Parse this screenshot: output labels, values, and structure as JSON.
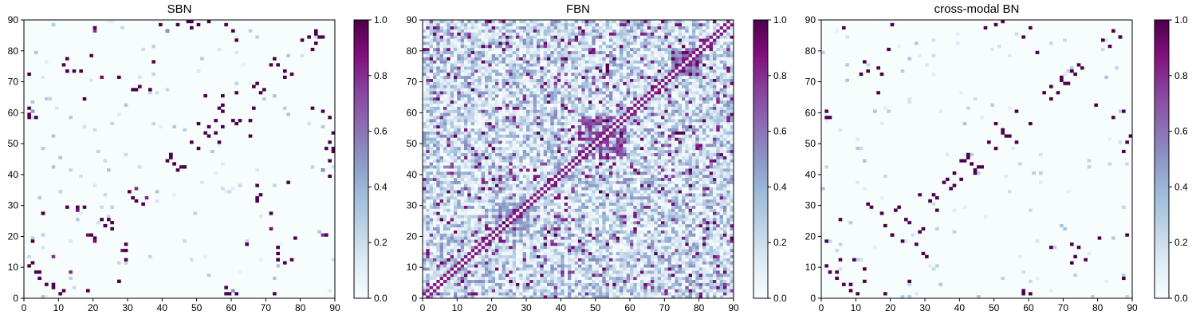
{
  "chart_data": [
    {
      "type": "heatmap",
      "title": "SBN",
      "xlim": [
        0,
        90
      ],
      "ylim": [
        0,
        90
      ],
      "x_ticks": [
        0,
        10,
        20,
        30,
        40,
        50,
        60,
        70,
        80,
        90
      ],
      "y_ticks": [
        0,
        10,
        20,
        30,
        40,
        50,
        60,
        70,
        80,
        90
      ],
      "matrix_size": 90,
      "colormap": "BuPu",
      "colorbar": {
        "range": [
          0.0,
          1.0
        ],
        "ticks": [
          "0.0",
          "0.2",
          "0.4",
          "0.6",
          "0.8",
          "1.0"
        ]
      },
      "values_note": "sparse symmetric matrix: mostly 0.0 with scattered entries near 1.0, concentrated near the diagonal and in the corners",
      "clusters": [
        {
          "x": 3,
          "y": 58,
          "v": 1.0
        },
        {
          "x": 2,
          "y": 60,
          "v": 0.5
        },
        {
          "x": 4,
          "y": 8,
          "v": 1.0
        },
        {
          "x": 6,
          "y": 4,
          "v": 1.0
        },
        {
          "x": 8,
          "y": 3,
          "v": 1.0
        },
        {
          "x": 5,
          "y": 27,
          "v": 1.0
        },
        {
          "x": 2,
          "y": 18,
          "v": 1.0
        },
        {
          "x": 10,
          "y": 1,
          "v": 1.0
        },
        {
          "x": 11,
          "y": 2,
          "v": 1.0
        },
        {
          "x": 13,
          "y": 8,
          "v": 0.8
        },
        {
          "x": 15,
          "y": 29,
          "v": 1.0
        },
        {
          "x": 17,
          "y": 29,
          "v": 1.0
        },
        {
          "x": 19,
          "y": 20,
          "v": 1.0
        },
        {
          "x": 20,
          "y": 18,
          "v": 0.9
        },
        {
          "x": 22,
          "y": 25,
          "v": 1.0
        },
        {
          "x": 24,
          "y": 25,
          "v": 1.0
        },
        {
          "x": 23,
          "y": 23,
          "v": 1.0
        },
        {
          "x": 27,
          "y": 5,
          "v": 1.0
        },
        {
          "x": 28,
          "y": 15,
          "v": 0.9
        },
        {
          "x": 29,
          "y": 12,
          "v": 1.0
        },
        {
          "x": 30,
          "y": 34,
          "v": 1.0
        },
        {
          "x": 31,
          "y": 32,
          "v": 1.0
        },
        {
          "x": 32,
          "y": 35,
          "v": 0.8
        },
        {
          "x": 20,
          "y": 87,
          "v": 1.0
        },
        {
          "x": 16,
          "y": 73,
          "v": 1.0
        },
        {
          "x": 14,
          "y": 73,
          "v": 1.0
        },
        {
          "x": 12,
          "y": 73,
          "v": 1.0
        },
        {
          "x": 17,
          "y": 64,
          "v": 1.0
        },
        {
          "x": 27,
          "y": 71,
          "v": 1.0
        },
        {
          "x": 22,
          "y": 71,
          "v": 0.9
        },
        {
          "x": 31,
          "y": 67,
          "v": 1.0
        },
        {
          "x": 32,
          "y": 67,
          "v": 1.0
        },
        {
          "x": 33,
          "y": 68,
          "v": 1.0
        },
        {
          "x": 36,
          "y": 67,
          "v": 1.0
        },
        {
          "x": 37,
          "y": 76,
          "v": 1.0
        },
        {
          "x": 41,
          "y": 86,
          "v": 1.0
        },
        {
          "x": 39,
          "y": 88,
          "v": 1.0
        },
        {
          "x": 44,
          "y": 88,
          "v": 1.0
        },
        {
          "x": 48,
          "y": 89,
          "v": 1.0
        },
        {
          "x": 41,
          "y": 44,
          "v": 1.0
        },
        {
          "x": 42,
          "y": 46,
          "v": 1.0
        },
        {
          "x": 43,
          "y": 43,
          "v": 1.0
        },
        {
          "x": 45,
          "y": 42,
          "v": 1.0
        },
        {
          "x": 46,
          "y": 42,
          "v": 1.0
        },
        {
          "x": 48,
          "y": 50,
          "v": 1.0
        },
        {
          "x": 50,
          "y": 56,
          "v": 1.0
        },
        {
          "x": 52,
          "y": 53,
          "v": 1.0
        },
        {
          "x": 53,
          "y": 55,
          "v": 1.0
        },
        {
          "x": 55,
          "y": 57,
          "v": 1.0
        },
        {
          "x": 56,
          "y": 61,
          "v": 1.0
        },
        {
          "x": 57,
          "y": 65,
          "v": 1.0
        },
        {
          "x": 58,
          "y": 1,
          "v": 1.0
        },
        {
          "x": 59,
          "y": 1,
          "v": 1.0
        },
        {
          "x": 61,
          "y": 1,
          "v": 1.0
        },
        {
          "x": 58,
          "y": 88,
          "v": 1.0
        },
        {
          "x": 60,
          "y": 86,
          "v": 1.0
        },
        {
          "x": 61,
          "y": 83,
          "v": 1.0
        },
        {
          "x": 60,
          "y": 57,
          "v": 1.0
        },
        {
          "x": 62,
          "y": 57,
          "v": 1.0
        },
        {
          "x": 65,
          "y": 52,
          "v": 1.0
        },
        {
          "x": 66,
          "y": 61,
          "v": 1.0
        },
        {
          "x": 68,
          "y": 66,
          "v": 1.0
        },
        {
          "x": 69,
          "y": 67,
          "v": 1.0
        },
        {
          "x": 71,
          "y": 75,
          "v": 1.0
        },
        {
          "x": 72,
          "y": 77,
          "v": 1.0
        },
        {
          "x": 75,
          "y": 73,
          "v": 1.0
        },
        {
          "x": 73,
          "y": 12,
          "v": 1.0
        },
        {
          "x": 75,
          "y": 11,
          "v": 1.0
        },
        {
          "x": 77,
          "y": 12,
          "v": 1.0
        },
        {
          "x": 72,
          "y": 1,
          "v": 1.0
        },
        {
          "x": 78,
          "y": 19,
          "v": 1.0
        },
        {
          "x": 80,
          "y": 83,
          "v": 1.0
        },
        {
          "x": 82,
          "y": 84,
          "v": 1.0
        },
        {
          "x": 84,
          "y": 85,
          "v": 1.0
        },
        {
          "x": 86,
          "y": 84,
          "v": 1.0
        },
        {
          "x": 88,
          "y": 50,
          "v": 1.0
        },
        {
          "x": 87,
          "y": 48,
          "v": 1.0
        },
        {
          "x": 89,
          "y": 53,
          "v": 1.0
        },
        {
          "x": 89,
          "y": 47,
          "v": 1.0
        },
        {
          "x": 86,
          "y": 20,
          "v": 0.8
        },
        {
          "x": 86,
          "y": 41,
          "v": 0.5
        }
      ]
    },
    {
      "type": "heatmap",
      "title": "FBN",
      "xlim": [
        0,
        90
      ],
      "ylim": [
        0,
        90
      ],
      "x_ticks": [
        0,
        10,
        20,
        30,
        40,
        50,
        60,
        70,
        80,
        90
      ],
      "y_ticks": [
        0,
        10,
        20,
        30,
        40,
        50,
        60,
        70,
        80,
        90
      ],
      "matrix_size": 90,
      "colormap": "BuPu",
      "colorbar": {
        "range": [
          0.0,
          1.0
        ],
        "ticks": [
          "0.0",
          "0.2",
          "0.4",
          "0.6",
          "0.8",
          "1.0"
        ]
      },
      "values_note": "dense symmetric matrix with values spread across 0.0–1.0, strongest along the diagonal and in a block near 45–58",
      "dense_blocks": [
        {
          "x0": 45,
          "x1": 58,
          "y0": 45,
          "y1": 58,
          "v": 0.85
        },
        {
          "x0": 72,
          "x1": 80,
          "y0": 72,
          "y1": 80,
          "v": 0.7
        },
        {
          "x0": 20,
          "x1": 30,
          "y0": 20,
          "y1": 30,
          "v": 0.6
        }
      ]
    },
    {
      "type": "heatmap",
      "title": "cross-modal BN",
      "xlim": [
        0,
        90
      ],
      "ylim": [
        0,
        90
      ],
      "x_ticks": [
        0,
        10,
        20,
        30,
        40,
        50,
        60,
        70,
        80,
        90
      ],
      "y_ticks": [
        0,
        10,
        20,
        30,
        40,
        50,
        60,
        70,
        80,
        90
      ],
      "matrix_size": 90,
      "colormap": "BuPu",
      "colorbar": {
        "range": [
          0.0,
          1.0
        ],
        "ticks": [
          "0.0",
          "0.2",
          "0.4",
          "0.6",
          "0.8",
          "1.0"
        ]
      },
      "values_note": "sparse symmetric matrix: mostly 0.0 with scattered entries near 1.0",
      "clusters": [
        {
          "x": 2,
          "y": 58,
          "v": 1.0
        },
        {
          "x": 1,
          "y": 18,
          "v": 1.0
        },
        {
          "x": 5,
          "y": 25,
          "v": 1.0
        },
        {
          "x": 4,
          "y": 8,
          "v": 1.0
        },
        {
          "x": 6,
          "y": 4,
          "v": 1.0
        },
        {
          "x": 8,
          "y": 2,
          "v": 1.0
        },
        {
          "x": 9,
          "y": 12,
          "v": 1.0
        },
        {
          "x": 10,
          "y": 1,
          "v": 1.0
        },
        {
          "x": 12,
          "y": 5,
          "v": 1.0
        },
        {
          "x": 6,
          "y": 87,
          "v": 1.0
        },
        {
          "x": 11,
          "y": 72,
          "v": 1.0
        },
        {
          "x": 13,
          "y": 73,
          "v": 1.0
        },
        {
          "x": 16,
          "y": 66,
          "v": 1.0
        },
        {
          "x": 18,
          "y": 23,
          "v": 1.0
        },
        {
          "x": 20,
          "y": 20,
          "v": 1.0
        },
        {
          "x": 21,
          "y": 28,
          "v": 1.0
        },
        {
          "x": 22,
          "y": 29,
          "v": 1.0
        },
        {
          "x": 25,
          "y": 24,
          "v": 1.0
        },
        {
          "x": 27,
          "y": 17,
          "v": 1.0
        },
        {
          "x": 29,
          "y": 14,
          "v": 1.0
        },
        {
          "x": 30,
          "y": 13,
          "v": 1.0
        },
        {
          "x": 31,
          "y": 31,
          "v": 1.0
        },
        {
          "x": 32,
          "y": 33,
          "v": 1.0
        },
        {
          "x": 33,
          "y": 28,
          "v": 1.0
        },
        {
          "x": 35,
          "y": 37,
          "v": 1.0
        },
        {
          "x": 36,
          "y": 38,
          "v": 1.0
        },
        {
          "x": 38,
          "y": 40,
          "v": 1.0
        },
        {
          "x": 40,
          "y": 44,
          "v": 1.0
        },
        {
          "x": 42,
          "y": 45,
          "v": 1.0
        },
        {
          "x": 43,
          "y": 43,
          "v": 1.0
        },
        {
          "x": 44,
          "y": 41,
          "v": 1.0
        },
        {
          "x": 46,
          "y": 42,
          "v": 1.0
        },
        {
          "x": 48,
          "y": 50,
          "v": 1.0
        },
        {
          "x": 50,
          "y": 56,
          "v": 1.0
        },
        {
          "x": 52,
          "y": 53,
          "v": 1.0
        },
        {
          "x": 54,
          "y": 52,
          "v": 1.0
        },
        {
          "x": 56,
          "y": 60,
          "v": 1.0
        },
        {
          "x": 58,
          "y": 1,
          "v": 1.0
        },
        {
          "x": 60,
          "y": 1,
          "v": 1.0
        },
        {
          "x": 58,
          "y": 84,
          "v": 1.0
        },
        {
          "x": 60,
          "y": 87,
          "v": 1.0
        },
        {
          "x": 62,
          "y": 79,
          "v": 1.0
        },
        {
          "x": 64,
          "y": 66,
          "v": 1.0
        },
        {
          "x": 66,
          "y": 68,
          "v": 1.0
        },
        {
          "x": 69,
          "y": 70,
          "v": 1.0
        },
        {
          "x": 71,
          "y": 69,
          "v": 1.0
        },
        {
          "x": 72,
          "y": 73,
          "v": 1.0
        },
        {
          "x": 74,
          "y": 75,
          "v": 1.0
        },
        {
          "x": 74,
          "y": 16,
          "v": 1.0
        },
        {
          "x": 76,
          "y": 12,
          "v": 1.0
        },
        {
          "x": 72,
          "y": 17,
          "v": 1.0
        },
        {
          "x": 80,
          "y": 19,
          "v": 1.0
        },
        {
          "x": 81,
          "y": 83,
          "v": 1.0
        },
        {
          "x": 84,
          "y": 86,
          "v": 1.0
        },
        {
          "x": 86,
          "y": 84,
          "v": 1.0
        },
        {
          "x": 87,
          "y": 47,
          "v": 1.0
        },
        {
          "x": 88,
          "y": 50,
          "v": 1.0
        },
        {
          "x": 89,
          "y": 52,
          "v": 1.0
        },
        {
          "x": 88,
          "y": 20,
          "v": 1.0
        }
      ]
    }
  ]
}
